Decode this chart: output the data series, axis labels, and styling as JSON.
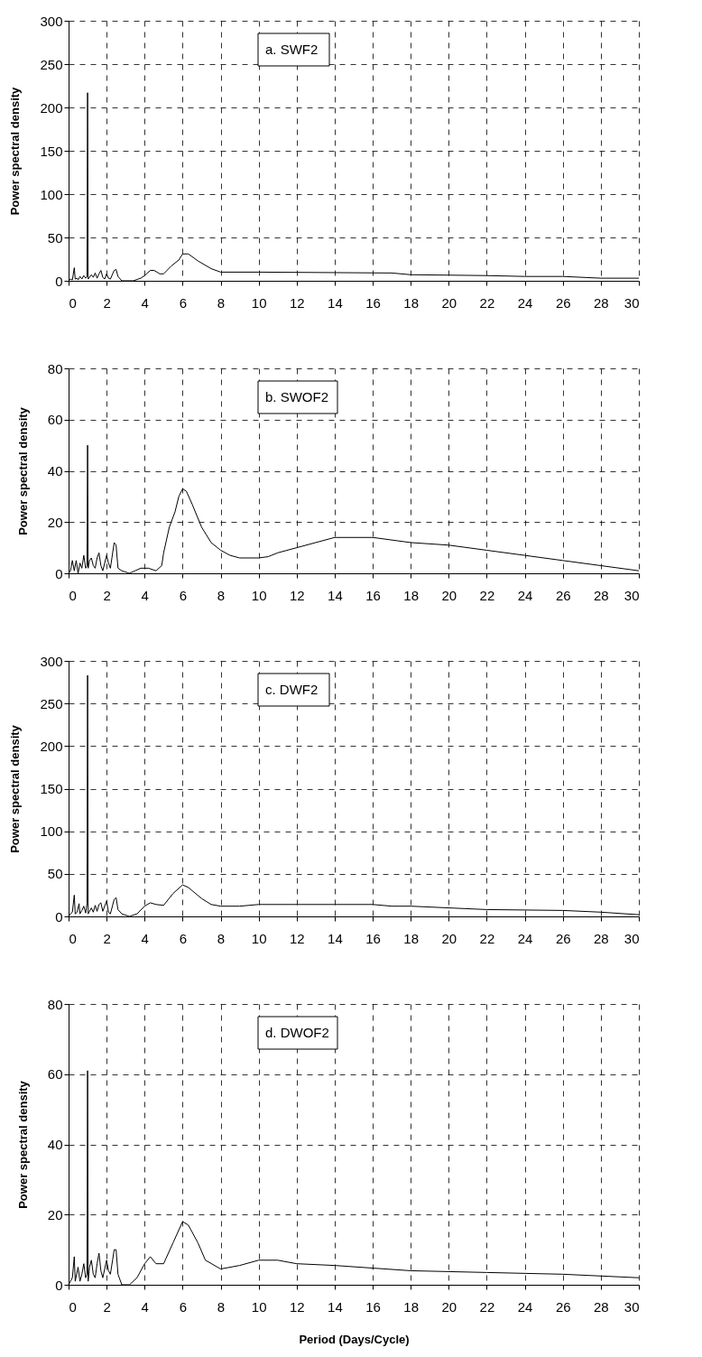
{
  "chart_data": [
    {
      "type": "line",
      "ylabel": "Power spectral density",
      "annotations": [
        "a. SWF2"
      ],
      "xlim": [
        0,
        30
      ],
      "xticks": [
        0,
        2,
        4,
        6,
        8,
        10,
        12,
        14,
        16,
        18,
        20,
        22,
        24,
        26,
        28,
        30
      ],
      "ylim": [
        0,
        300
      ],
      "yticks": [
        0,
        50,
        100,
        150,
        200,
        250,
        300
      ],
      "grid": true,
      "line_style": "solid",
      "series": [
        {
          "color": "#000000",
          "x": [
            0,
            0.1,
            0.2,
            0.3,
            0.35,
            0.45,
            0.5,
            0.6,
            0.7,
            0.8,
            0.9,
            0.97,
            1.0,
            1.03,
            1.2,
            1.3,
            1.4,
            1.5,
            1.6,
            1.7,
            1.8,
            1.9,
            2.0,
            2.1,
            2.2,
            2.4,
            2.5,
            2.6,
            2.8,
            3.0,
            3.4,
            3.8,
            4.0,
            4.3,
            4.5,
            4.8,
            5.0,
            5.4,
            5.8,
            6.0,
            6.3,
            6.8,
            7.5,
            8,
            10,
            17,
            18,
            22,
            24,
            26,
            28,
            30
          ],
          "values": [
            0,
            2,
            1,
            15,
            2,
            3,
            1,
            5,
            2,
            6,
            3,
            5,
            217,
            2,
            7,
            4,
            9,
            3,
            8,
            12,
            4,
            2,
            8,
            3,
            2,
            12,
            13,
            5,
            0,
            0,
            0,
            3,
            6,
            12,
            12,
            8,
            8,
            17,
            24,
            31,
            31,
            23,
            14,
            10,
            10,
            9,
            7,
            6,
            5,
            5,
            3,
            3
          ]
        }
      ]
    },
    {
      "type": "line",
      "ylabel": "Power spectral density",
      "annotations": [
        "b. SWOF2"
      ],
      "xlim": [
        0,
        30
      ],
      "xticks": [
        0,
        2,
        4,
        6,
        8,
        10,
        12,
        14,
        16,
        18,
        20,
        22,
        24,
        26,
        28,
        30
      ],
      "ylim": [
        0,
        80
      ],
      "yticks": [
        0,
        20,
        40,
        60,
        80
      ],
      "grid": true,
      "line_style": "solid",
      "series": [
        {
          "color": "#000000",
          "x": [
            0,
            0.1,
            0.2,
            0.3,
            0.4,
            0.5,
            0.6,
            0.7,
            0.8,
            0.9,
            0.97,
            1.0,
            1.03,
            1.1,
            1.2,
            1.3,
            1.4,
            1.5,
            1.6,
            1.7,
            1.8,
            2.0,
            2.1,
            2.2,
            2.4,
            2.5,
            2.6,
            2.8,
            3.2,
            3.5,
            3.8,
            4.2,
            4.6,
            4.9,
            5.0,
            5.3,
            5.6,
            5.8,
            6.0,
            6.2,
            6.5,
            7.0,
            7.5,
            8,
            8.5,
            9,
            10,
            10.5,
            11,
            12,
            13,
            14,
            16,
            17,
            18,
            20,
            22,
            24,
            26,
            28,
            30
          ],
          "values": [
            0,
            1,
            5,
            1,
            5,
            0,
            4,
            2,
            7,
            2,
            3,
            50,
            2,
            5,
            6,
            3,
            2,
            6,
            8,
            3,
            1,
            7,
            4,
            2,
            12,
            11,
            2,
            1,
            0,
            1,
            2,
            2,
            1,
            3,
            8,
            18,
            24,
            30,
            33,
            32,
            27,
            18,
            12,
            9,
            7,
            6,
            6,
            6.5,
            8,
            10,
            12,
            14,
            14,
            13,
            12,
            11,
            9,
            7,
            5,
            3,
            1
          ]
        }
      ]
    },
    {
      "type": "line",
      "ylabel": "Power spectral density",
      "annotations": [
        "c. DWF2"
      ],
      "xlim": [
        0,
        30
      ],
      "xticks": [
        0,
        2,
        4,
        6,
        8,
        10,
        12,
        14,
        16,
        18,
        20,
        22,
        24,
        26,
        28,
        30
      ],
      "ylim": [
        0,
        300
      ],
      "yticks": [
        0,
        50,
        100,
        150,
        200,
        250,
        300
      ],
      "grid": true,
      "line_style": "solid",
      "series": [
        {
          "color": "#000000",
          "x": [
            0,
            0.1,
            0.2,
            0.3,
            0.35,
            0.45,
            0.55,
            0.6,
            0.7,
            0.8,
            0.9,
            0.97,
            1.0,
            1.03,
            1.2,
            1.3,
            1.4,
            1.5,
            1.6,
            1.7,
            1.8,
            2.0,
            2.1,
            2.2,
            2.4,
            2.5,
            2.6,
            2.8,
            3.2,
            3.6,
            4.0,
            4.3,
            4.6,
            5.0,
            5.5,
            6.0,
            6.3,
            7.0,
            7.5,
            8,
            9,
            10,
            16,
            17,
            18,
            22,
            26,
            28,
            30
          ],
          "values": [
            0,
            3,
            5,
            25,
            3,
            5,
            15,
            3,
            7,
            12,
            4,
            15,
            283,
            3,
            10,
            5,
            13,
            6,
            14,
            16,
            6,
            18,
            5,
            3,
            20,
            22,
            8,
            3,
            0,
            3,
            12,
            16,
            14,
            13,
            27,
            37,
            34,
            21,
            14,
            12,
            12,
            14,
            14,
            12,
            12,
            8,
            7,
            5,
            2
          ]
        }
      ]
    },
    {
      "type": "line",
      "ylabel": "Power spectral density",
      "xlabel": "Period (Days/Cycle)",
      "annotations": [
        "d. DWOF2"
      ],
      "xlim": [
        0,
        30
      ],
      "xticks": [
        0,
        2,
        4,
        6,
        8,
        10,
        12,
        14,
        16,
        18,
        20,
        22,
        24,
        26,
        28,
        30
      ],
      "ylim": [
        0,
        80
      ],
      "yticks": [
        0,
        20,
        40,
        60,
        80
      ],
      "grid": true,
      "line_style": "solid",
      "series": [
        {
          "color": "#000000",
          "x": [
            0,
            0.1,
            0.2,
            0.3,
            0.35,
            0.5,
            0.6,
            0.7,
            0.8,
            0.9,
            0.97,
            1.0,
            1.03,
            1.1,
            1.2,
            1.3,
            1.4,
            1.5,
            1.6,
            1.7,
            1.8,
            2.0,
            2.1,
            2.2,
            2.4,
            2.5,
            2.6,
            2.8,
            3.2,
            3.6,
            4.0,
            4.3,
            4.6,
            5.0,
            5.5,
            6.0,
            6.3,
            6.8,
            7.2,
            8,
            9,
            10,
            11,
            12,
            14,
            18,
            22,
            26,
            30
          ],
          "values": [
            0,
            1,
            2,
            8,
            1,
            5,
            1,
            3,
            6,
            2,
            3,
            61,
            1,
            5,
            7,
            3,
            2,
            6,
            9,
            4,
            2,
            7,
            4,
            3,
            10,
            10,
            3,
            0,
            0,
            2,
            6,
            8,
            6,
            6,
            12,
            18,
            17,
            12,
            7,
            4.5,
            5.5,
            7,
            7,
            6,
            5.5,
            4,
            3.5,
            3,
            2
          ]
        }
      ]
    }
  ]
}
